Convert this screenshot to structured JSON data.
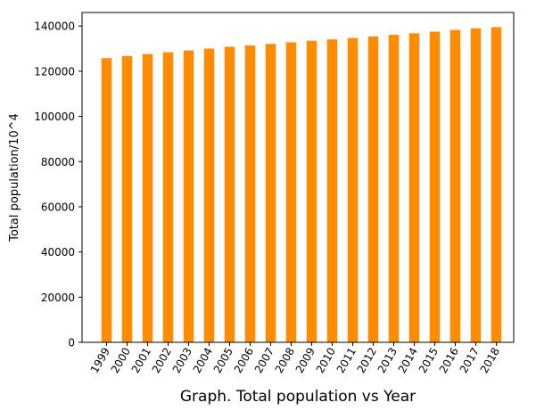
{
  "chart_data": {
    "type": "bar",
    "title": "",
    "xlabel": "Graph. Total population vs Year",
    "ylabel": "Total population/10^4",
    "categories": [
      "1999",
      "2000",
      "2001",
      "2002",
      "2003",
      "2004",
      "2005",
      "2006",
      "2007",
      "2008",
      "2009",
      "2010",
      "2011",
      "2012",
      "2013",
      "2014",
      "2015",
      "2016",
      "2017",
      "2018"
    ],
    "values": [
      125800,
      126700,
      127600,
      128400,
      129200,
      130000,
      130800,
      131400,
      132100,
      132800,
      133500,
      134100,
      134700,
      135400,
      136100,
      136800,
      137500,
      138300,
      139000,
      139500
    ],
    "ylim": [
      0,
      146000
    ],
    "yticks": [
      0,
      20000,
      40000,
      60000,
      80000,
      100000,
      120000,
      140000
    ],
    "ytick_labels": [
      "0",
      "20000",
      "40000",
      "60000",
      "80000",
      "100000",
      "120000",
      "140000"
    ],
    "grid": false,
    "legend": "none",
    "bar_color": "#ff8c00"
  }
}
